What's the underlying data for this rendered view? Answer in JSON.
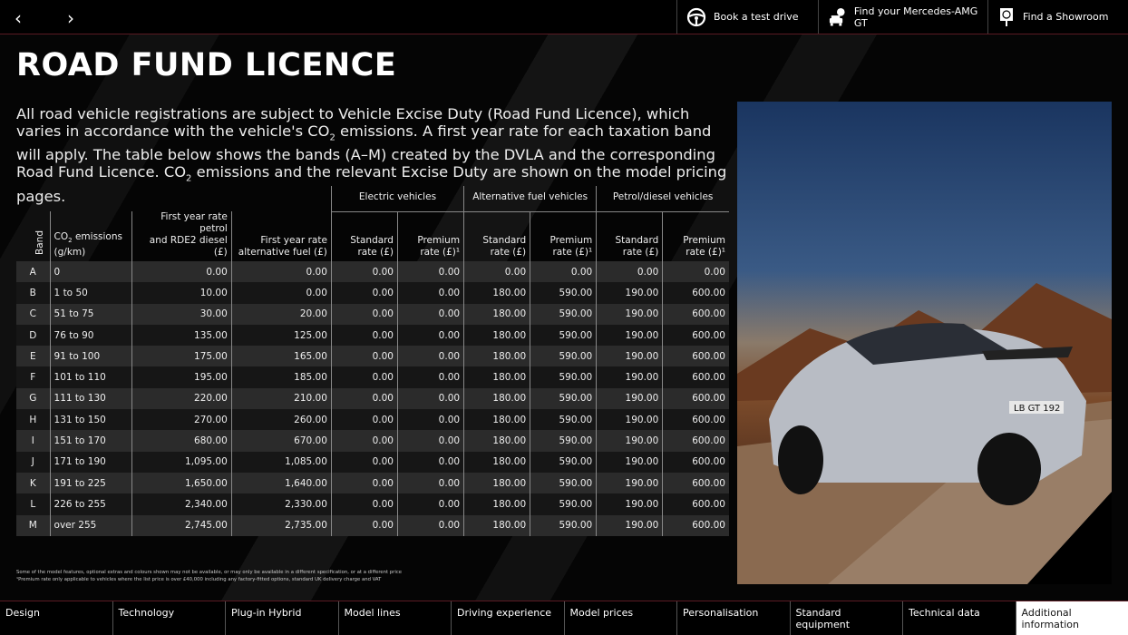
{
  "topbar": {
    "prev": "‹",
    "next": "›",
    "buttons": [
      {
        "label": "Book a test drive",
        "icon": "steering-wheel-icon"
      },
      {
        "label": "Find your Mercedes-AMG GT",
        "icon": "car-question-icon"
      },
      {
        "label": "Find a Showroom",
        "icon": "showroom-pin-icon"
      }
    ]
  },
  "title": "ROAD FUND LICENCE",
  "intro": {
    "p1": "All road vehicle registrations are subject to Vehicle Excise Duty (Road Fund Licence), which varies in accordance with the vehicle's CO",
    "p2": " emissions. A first year rate for each taxation band will apply. The table below shows the bands (A–M) created by the DVLA and the corresponding Road Fund Licence. CO",
    "p3": " emissions and the relevant Excise Duty are shown on the model pricing pages.",
    "sub": "2"
  },
  "table": {
    "groups": [
      "Electric vehicles",
      "Alternative fuel vehicles",
      "Petrol/diesel vehicles"
    ],
    "headers": {
      "band": "Band",
      "co2a": "CO",
      "co2b": "2",
      "co2c": " emissions",
      "co2d": "(g/km)",
      "petrol1": "First year rate petrol",
      "petrol2": "and RDE2 diesel (£)",
      "alt1": "First year rate",
      "alt2": "alternative fuel (£)",
      "std1": "Standard",
      "std2": "rate (£)",
      "prem1": "Premium",
      "prem2": "rate (£)¹"
    },
    "rows": [
      [
        "A",
        "0",
        "0.00",
        "0.00",
        "0.00",
        "0.00",
        "0.00",
        "0.00",
        "0.00",
        "0.00"
      ],
      [
        "B",
        "1 to 50",
        "10.00",
        "0.00",
        "0.00",
        "0.00",
        "180.00",
        "590.00",
        "190.00",
        "600.00"
      ],
      [
        "C",
        "51 to 75",
        "30.00",
        "20.00",
        "0.00",
        "0.00",
        "180.00",
        "590.00",
        "190.00",
        "600.00"
      ],
      [
        "D",
        "76 to 90",
        "135.00",
        "125.00",
        "0.00",
        "0.00",
        "180.00",
        "590.00",
        "190.00",
        "600.00"
      ],
      [
        "E",
        "91 to 100",
        "175.00",
        "165.00",
        "0.00",
        "0.00",
        "180.00",
        "590.00",
        "190.00",
        "600.00"
      ],
      [
        "F",
        "101 to 110",
        "195.00",
        "185.00",
        "0.00",
        "0.00",
        "180.00",
        "590.00",
        "190.00",
        "600.00"
      ],
      [
        "G",
        "111 to 130",
        "220.00",
        "210.00",
        "0.00",
        "0.00",
        "180.00",
        "590.00",
        "190.00",
        "600.00"
      ],
      [
        "H",
        "131 to 150",
        "270.00",
        "260.00",
        "0.00",
        "0.00",
        "180.00",
        "590.00",
        "190.00",
        "600.00"
      ],
      [
        "I",
        "151 to 170",
        "680.00",
        "670.00",
        "0.00",
        "0.00",
        "180.00",
        "590.00",
        "190.00",
        "600.00"
      ],
      [
        "J",
        "171 to 190",
        "1,095.00",
        "1,085.00",
        "0.00",
        "0.00",
        "180.00",
        "590.00",
        "190.00",
        "600.00"
      ],
      [
        "K",
        "191 to 225",
        "1,650.00",
        "1,640.00",
        "0.00",
        "0.00",
        "180.00",
        "590.00",
        "190.00",
        "600.00"
      ],
      [
        "L",
        "226 to 255",
        "2,340.00",
        "2,330.00",
        "0.00",
        "0.00",
        "180.00",
        "590.00",
        "190.00",
        "600.00"
      ],
      [
        "M",
        "over 255",
        "2,745.00",
        "2,735.00",
        "0.00",
        "0.00",
        "180.00",
        "590.00",
        "190.00",
        "600.00"
      ]
    ]
  },
  "photo": {
    "plate": "LB GT 192"
  },
  "footnotes": [
    "Some of the model features, optional extras and colours shown may not be available, or may only be available in a different specification, or at a different price",
    "¹Premium rate only applicable to vehicles where the list price is over £40,000 including any factory-fitted options, standard UK delivery charge and VAT"
  ],
  "nav": [
    "Design",
    "Technology",
    "Plug-in Hybrid",
    "Model lines",
    "Driving experience",
    "Model prices",
    "Personalisation",
    "Standard equipment",
    "Technical data",
    "Additional information"
  ],
  "nav_active": "Additional information"
}
